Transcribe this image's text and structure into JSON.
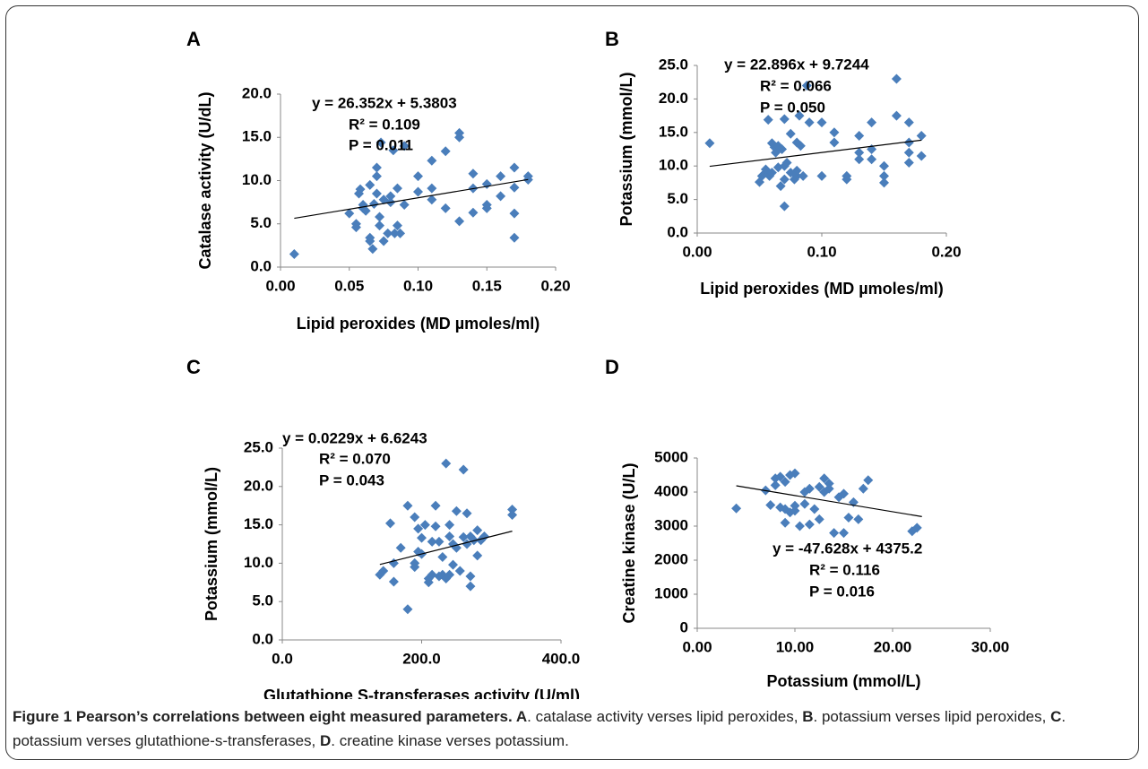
{
  "chart_data": [
    {
      "type": "scatter",
      "label": "A",
      "color": "#4a7ebb",
      "x_label": "Lipid peroxides (MD µmoles/ml)",
      "y_label": "Catalase activity (U/dL)",
      "annotations": [
        "y = 26.352x + 5.3803",
        "R² = 0.109",
        "P  = 0.011"
      ],
      "xlim": [
        0,
        0.2
      ],
      "ylim": [
        0,
        20
      ],
      "xticks": [
        {
          "value": 0,
          "label": "0.00"
        },
        {
          "value": 0.05,
          "label": "0.05"
        },
        {
          "value": 0.1,
          "label": "0.10"
        },
        {
          "value": 0.15,
          "label": "0.15"
        },
        {
          "value": 0.2,
          "label": "0.20"
        }
      ],
      "yticks": [
        {
          "value": 0,
          "label": "0.0"
        },
        {
          "value": 5,
          "label": "5.0"
        },
        {
          "value": 10,
          "label": "10.0"
        },
        {
          "value": 15,
          "label": "15.0"
        },
        {
          "value": 20,
          "label": "20.0"
        }
      ],
      "x": [
        0.01,
        0.05,
        0.055,
        0.055,
        0.057,
        0.058,
        0.06,
        0.06,
        0.062,
        0.065,
        0.065,
        0.065,
        0.067,
        0.068,
        0.07,
        0.07,
        0.07,
        0.072,
        0.072,
        0.073,
        0.075,
        0.075,
        0.078,
        0.08,
        0.08,
        0.082,
        0.083,
        0.085,
        0.085,
        0.087,
        0.09,
        0.09,
        0.1,
        0.1,
        0.11,
        0.11,
        0.11,
        0.12,
        0.12,
        0.13,
        0.13,
        0.13,
        0.14,
        0.14,
        0.14,
        0.15,
        0.15,
        0.15,
        0.16,
        0.16,
        0.17,
        0.17,
        0.17,
        0.17,
        0.18,
        0.18
      ],
      "values": [
        1.5,
        6.2,
        5.0,
        4.6,
        8.5,
        9.0,
        7.2,
        6.8,
        6.5,
        9.5,
        3.4,
        3.0,
        2.1,
        7.3,
        11.5,
        10.5,
        8.5,
        5.8,
        4.8,
        14.4,
        7.8,
        3.0,
        3.9,
        8.2,
        7.5,
        13.5,
        3.9,
        9.1,
        4.8,
        3.9,
        7.2,
        14.0,
        10.5,
        8.7,
        12.3,
        9.1,
        7.8,
        13.4,
        6.8,
        15.0,
        15.5,
        5.3,
        10.8,
        9.1,
        6.3,
        9.6,
        7.2,
        6.8,
        10.5,
        8.2,
        11.5,
        9.2,
        6.2,
        3.4,
        10.5,
        10.1
      ],
      "trend_x": [
        0.01,
        0.18
      ],
      "trend_y": [
        5.64,
        10.12
      ]
    },
    {
      "type": "scatter",
      "label": "B",
      "color": "#4a7ebb",
      "x_label": "Lipid peroxides (MD µmoles/ml)",
      "y_label": "Potassium (mmol/L)",
      "annotations": [
        "y = 22.896x + 9.7244",
        "R² = 0.066",
        "P  = 0.050"
      ],
      "xlim": [
        0,
        0.2
      ],
      "ylim": [
        0,
        25
      ],
      "xticks": [
        {
          "value": 0,
          "label": "0.00"
        },
        {
          "value": 0.1,
          "label": "0.10"
        },
        {
          "value": 0.2,
          "label": "0.20"
        }
      ],
      "yticks": [
        {
          "value": 0,
          "label": "0.0"
        },
        {
          "value": 5,
          "label": "5.0"
        },
        {
          "value": 10,
          "label": "10.0"
        },
        {
          "value": 15,
          "label": "15.0"
        },
        {
          "value": 20,
          "label": "20.0"
        },
        {
          "value": 25,
          "label": "25.0"
        }
      ],
      "x": [
        0.01,
        0.05,
        0.052,
        0.055,
        0.055,
        0.057,
        0.058,
        0.06,
        0.06,
        0.062,
        0.063,
        0.065,
        0.065,
        0.067,
        0.068,
        0.07,
        0.07,
        0.07,
        0.07,
        0.072,
        0.075,
        0.075,
        0.078,
        0.08,
        0.08,
        0.08,
        0.082,
        0.083,
        0.085,
        0.088,
        0.09,
        0.1,
        0.1,
        0.11,
        0.11,
        0.12,
        0.12,
        0.13,
        0.13,
        0.13,
        0.14,
        0.14,
        0.14,
        0.15,
        0.15,
        0.15,
        0.16,
        0.16,
        0.17,
        0.17,
        0.17,
        0.17,
        0.18,
        0.18
      ],
      "values": [
        13.4,
        7.6,
        8.5,
        9.0,
        9.5,
        16.9,
        8.5,
        13.4,
        9.0,
        12.8,
        12.0,
        13.0,
        9.8,
        7.0,
        12.5,
        17.0,
        10.0,
        8.0,
        4.0,
        10.5,
        14.8,
        9.0,
        8.0,
        13.5,
        8.5,
        9.3,
        17.5,
        13.0,
        8.5,
        22.0,
        16.5,
        16.5,
        8.5,
        15.0,
        13.5,
        8.5,
        8.0,
        14.5,
        12.0,
        11.0,
        16.5,
        12.5,
        11.0,
        10.0,
        8.5,
        7.5,
        23.0,
        17.5,
        16.5,
        13.5,
        12.0,
        10.5,
        14.5,
        11.5
      ],
      "trend_x": [
        0.01,
        0.18
      ],
      "trend_y": [
        9.95,
        13.85
      ]
    },
    {
      "type": "scatter",
      "label": "C",
      "color": "#4a7ebb",
      "x_label": "Glutathione S-transferases activity (U/ml)",
      "y_label": "Potassium (mmol/L)",
      "annotations": [
        "y = 0.0229x + 6.6243",
        "R² = 0.070",
        "P  = 0.043"
      ],
      "xlim": [
        0,
        400
      ],
      "ylim": [
        0,
        25
      ],
      "xticks": [
        {
          "value": 0,
          "label": "0.0"
        },
        {
          "value": 200,
          "label": "200.0"
        },
        {
          "value": 400,
          "label": "400.0"
        }
      ],
      "yticks": [
        {
          "value": 0,
          "label": "0.0"
        },
        {
          "value": 5,
          "label": "5.0"
        },
        {
          "value": 10,
          "label": "10.0"
        },
        {
          "value": 15,
          "label": "15.0"
        },
        {
          "value": 20,
          "label": "20.0"
        },
        {
          "value": 25,
          "label": "25.0"
        }
      ],
      "x": [
        140,
        145,
        155,
        160,
        160,
        170,
        180,
        180,
        190,
        190,
        190,
        195,
        195,
        200,
        200,
        205,
        210,
        210,
        215,
        215,
        220,
        220,
        225,
        225,
        230,
        230,
        235,
        235,
        240,
        240,
        240,
        245,
        245,
        250,
        250,
        255,
        260,
        260,
        265,
        265,
        270,
        270,
        270,
        275,
        280,
        280,
        285,
        290,
        330,
        330
      ],
      "values": [
        8.5,
        9.0,
        15.2,
        7.6,
        10.0,
        12.0,
        17.5,
        4.0,
        16.0,
        10.0,
        9.5,
        14.5,
        11.5,
        13.3,
        11.2,
        15.0,
        8.0,
        7.5,
        12.8,
        8.5,
        17.5,
        14.8,
        12.8,
        8.3,
        10.8,
        8.5,
        23.0,
        8.0,
        15.0,
        13.5,
        8.5,
        12.5,
        9.8,
        16.8,
        12.0,
        9.0,
        22.2,
        13.4,
        16.5,
        12.5,
        13.5,
        8.3,
        7.0,
        13.0,
        14.3,
        11.0,
        13.0,
        13.5,
        17.0,
        16.3
      ],
      "trend_x": [
        140,
        330
      ],
      "trend_y": [
        9.83,
        14.18
      ]
    },
    {
      "type": "scatter",
      "label": "D",
      "color": "#4a7ebb",
      "x_label": "Potassium (mmol/L)",
      "y_label": "Creatine kinase (U/L)",
      "annotations": [
        "y = -47.628x + 4375.2",
        "R² = 0.116",
        "P  = 0.016"
      ],
      "xlim": [
        0,
        30
      ],
      "ylim": [
        0,
        5000
      ],
      "xticks": [
        {
          "value": 0,
          "label": "0.00"
        },
        {
          "value": 10,
          "label": "10.00"
        },
        {
          "value": 20,
          "label": "20.00"
        },
        {
          "value": 30,
          "label": "30.00"
        }
      ],
      "yticks": [
        0,
        1000,
        2000,
        3000,
        4000,
        5000
      ],
      "x": [
        4,
        7,
        7.5,
        8,
        8,
        8.5,
        8.5,
        9,
        9,
        9,
        9.5,
        9.5,
        10,
        10,
        10,
        10.5,
        11,
        11,
        11.5,
        11.5,
        12,
        12.5,
        12.5,
        13,
        13,
        13.5,
        13.5,
        14,
        14.5,
        15,
        15,
        15.5,
        16,
        16.5,
        17,
        17.5,
        22,
        22.5
      ],
      "values": [
        3520,
        4050,
        3620,
        4400,
        4200,
        3550,
        4450,
        4300,
        3500,
        3100,
        4500,
        3400,
        4550,
        3600,
        3450,
        3000,
        4000,
        3650,
        4100,
        3050,
        3500,
        4150,
        3200,
        4400,
        4000,
        4250,
        4100,
        2800,
        3850,
        3950,
        2800,
        3250,
        3700,
        3200,
        4100,
        4350,
        2850,
        2950
      ],
      "trend_x": [
        4,
        23
      ],
      "trend_y": [
        4184.7,
        3279.8
      ]
    }
  ],
  "caption": {
    "runs": [
      {
        "text": "Figure 1 Pearson’s correlations between eight measured parameters. ",
        "bold": true
      },
      {
        "text": "A",
        "bold": true
      },
      {
        "text": ". catalase activity verses lipid peroxides, ",
        "bold": false
      },
      {
        "text": "B",
        "bold": true
      },
      {
        "text": ". potassium verses lipid peroxides, ",
        "bold": false
      },
      {
        "text": "C",
        "bold": true
      },
      {
        "text": ". potassium verses glutathione-s-transferases, ",
        "bold": false
      },
      {
        "text": "D",
        "bold": true
      },
      {
        "text": ". creatine kinase verses potassium.",
        "bold": false
      }
    ]
  }
}
